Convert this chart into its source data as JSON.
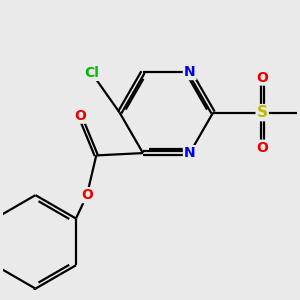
{
  "background_color": "#eaeaea",
  "atom_colors": {
    "C": "#000000",
    "N": "#0000ee",
    "O": "#ee0000",
    "S": "#bbbb00",
    "Cl": "#00bb00",
    "H": "#000000"
  },
  "bond_color": "#000000",
  "bond_width": 1.6,
  "font_size_atoms": 10,
  "figsize": [
    3.0,
    3.0
  ],
  "dpi": 100
}
